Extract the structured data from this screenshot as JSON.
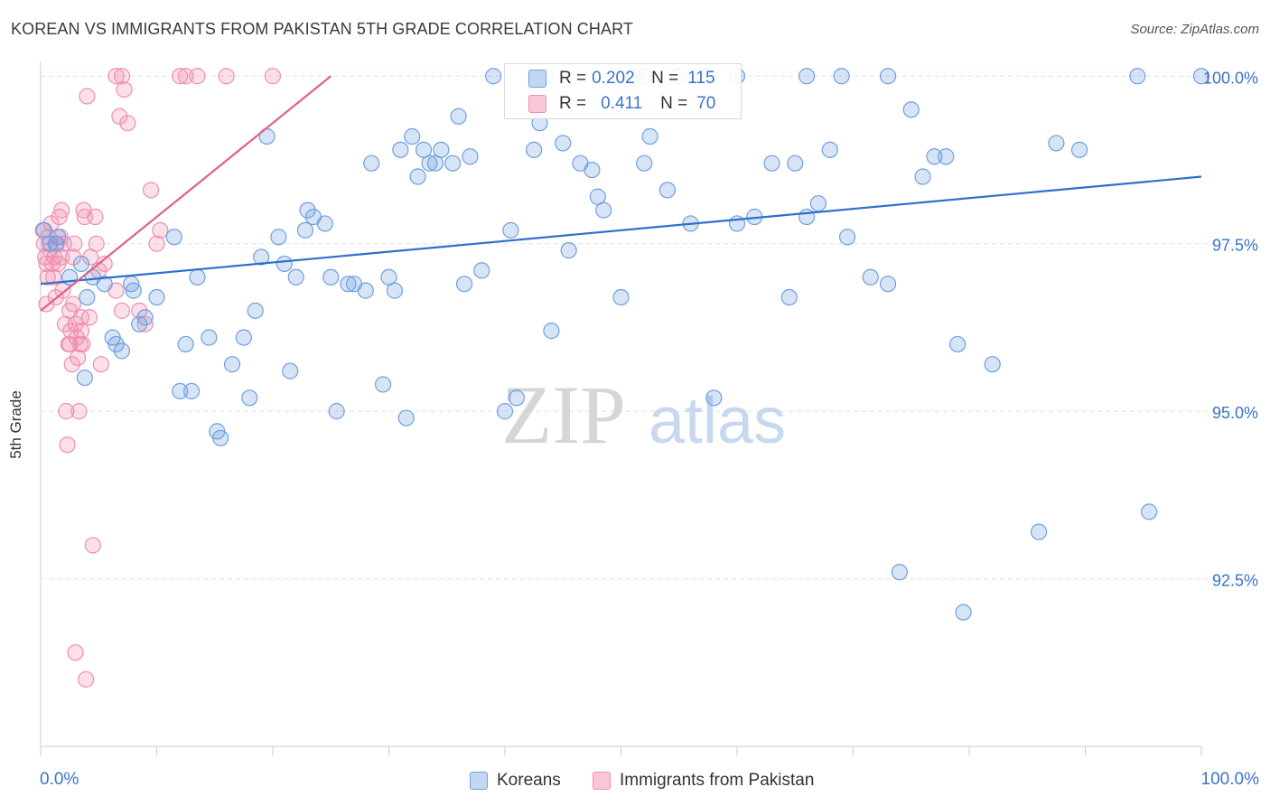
{
  "title": "KOREAN VS IMMIGRANTS FROM PAKISTAN 5TH GRADE CORRELATION CHART",
  "source": "Source: ZipAtlas.com",
  "watermark": {
    "zip": "ZIP",
    "atlas": "atlas"
  },
  "legend": {
    "r_label": "R =",
    "n_label": "N =",
    "koreans": {
      "r": "0.202",
      "n": "115"
    },
    "pakistan": {
      "r": "0.411",
      "n": "70"
    }
  },
  "colors": {
    "koreans": "#6f9fe0",
    "koreans_line": "#2f6fcc",
    "pakistan": "#ef8fb0",
    "pakistan_line": "#e0608a",
    "tick_text": "#3a74c8",
    "grid": "#e3e3e3"
  },
  "chart_data": {
    "type": "scatter",
    "title": "KOREAN VS IMMIGRANTS FROM PAKISTAN 5TH GRADE CORRELATION CHART",
    "xlabel": "",
    "ylabel": "5th Grade",
    "xlim": [
      0,
      100
    ],
    "ylim": [
      90.0,
      100.3
    ],
    "x_tick_labels": [
      "0.0%",
      "100.0%"
    ],
    "y_ticks": [
      92.5,
      95.0,
      97.5,
      100.0
    ],
    "y_tick_labels": [
      "92.5%",
      "95.0%",
      "97.5%",
      "100.0%"
    ],
    "grid": true,
    "legend_position": "bottom",
    "series": [
      {
        "name": "Koreans",
        "r": 0.202,
        "n": 115,
        "trend": {
          "x": [
            0,
            100
          ],
          "y": [
            96.9,
            98.5
          ]
        },
        "points": [
          [
            0.3,
            97.7
          ],
          [
            0.8,
            97.5
          ],
          [
            1.3,
            97.5
          ],
          [
            1.5,
            97.6
          ],
          [
            2.5,
            97.0
          ],
          [
            3.5,
            97.2
          ],
          [
            4.0,
            96.7
          ],
          [
            4.5,
            97.0
          ],
          [
            5.5,
            96.9
          ],
          [
            6.2,
            96.1
          ],
          [
            3.8,
            95.5
          ],
          [
            6.5,
            96.0
          ],
          [
            7.0,
            95.9
          ],
          [
            8.0,
            96.8
          ],
          [
            8.5,
            96.3
          ],
          [
            9.0,
            96.4
          ],
          [
            7.8,
            96.9
          ],
          [
            10.0,
            96.7
          ],
          [
            11.5,
            97.6
          ],
          [
            12.0,
            95.3
          ],
          [
            12.5,
            96.0
          ],
          [
            13.0,
            95.3
          ],
          [
            13.5,
            97.0
          ],
          [
            14.5,
            96.1
          ],
          [
            15.2,
            94.7
          ],
          [
            15.5,
            94.6
          ],
          [
            16.5,
            95.7
          ],
          [
            17.5,
            96.1
          ],
          [
            18.0,
            95.2
          ],
          [
            18.5,
            96.5
          ],
          [
            19.0,
            97.3
          ],
          [
            19.5,
            99.1
          ],
          [
            20.5,
            97.6
          ],
          [
            21.0,
            97.2
          ],
          [
            21.5,
            95.6
          ],
          [
            22.0,
            97.0
          ],
          [
            22.8,
            97.7
          ],
          [
            23.0,
            98.0
          ],
          [
            23.5,
            97.9
          ],
          [
            24.5,
            97.8
          ],
          [
            25.0,
            97.0
          ],
          [
            25.5,
            95.0
          ],
          [
            26.5,
            96.9
          ],
          [
            27.0,
            96.9
          ],
          [
            28.0,
            96.8
          ],
          [
            28.5,
            98.7
          ],
          [
            29.5,
            95.4
          ],
          [
            30.0,
            97.0
          ],
          [
            30.5,
            96.8
          ],
          [
            31.0,
            98.9
          ],
          [
            31.5,
            94.9
          ],
          [
            32.0,
            99.1
          ],
          [
            32.5,
            98.5
          ],
          [
            33.0,
            98.9
          ],
          [
            33.5,
            98.7
          ],
          [
            34.0,
            98.7
          ],
          [
            34.5,
            98.9
          ],
          [
            35.5,
            98.7
          ],
          [
            36.0,
            99.4
          ],
          [
            36.5,
            96.9
          ],
          [
            37.0,
            98.8
          ],
          [
            38.0,
            97.1
          ],
          [
            39.0,
            100.0
          ],
          [
            40.0,
            95.0
          ],
          [
            40.5,
            97.7
          ],
          [
            41.0,
            95.2
          ],
          [
            42.5,
            98.9
          ],
          [
            43.0,
            99.3
          ],
          [
            43.5,
            100.0
          ],
          [
            44.0,
            96.2
          ],
          [
            45.0,
            99.0
          ],
          [
            45.5,
            97.4
          ],
          [
            46.5,
            98.7
          ],
          [
            47.5,
            98.6
          ],
          [
            48.0,
            98.2
          ],
          [
            48.5,
            98.0
          ],
          [
            50.0,
            96.7
          ],
          [
            51.0,
            100.0
          ],
          [
            52.0,
            98.7
          ],
          [
            52.5,
            99.1
          ],
          [
            54.0,
            98.3
          ],
          [
            55.0,
            100.0
          ],
          [
            56.0,
            97.8
          ],
          [
            57.5,
            100.0
          ],
          [
            58.0,
            95.2
          ],
          [
            60.0,
            97.8
          ],
          [
            61.5,
            97.9
          ],
          [
            63.0,
            98.7
          ],
          [
            64.5,
            96.7
          ],
          [
            65.0,
            98.7
          ],
          [
            66.0,
            97.9
          ],
          [
            67.0,
            98.1
          ],
          [
            68.0,
            98.9
          ],
          [
            69.0,
            100.0
          ],
          [
            69.5,
            97.6
          ],
          [
            71.5,
            97.0
          ],
          [
            73.0,
            96.9
          ],
          [
            74.0,
            92.6
          ],
          [
            75.0,
            99.5
          ],
          [
            76.0,
            98.5
          ],
          [
            77.0,
            98.8
          ],
          [
            78.0,
            98.8
          ],
          [
            79.0,
            96.0
          ],
          [
            79.5,
            92.0
          ],
          [
            82.0,
            95.7
          ],
          [
            86.0,
            93.2
          ],
          [
            87.5,
            99.0
          ],
          [
            89.5,
            98.9
          ],
          [
            94.5,
            100.0
          ],
          [
            95.5,
            93.5
          ],
          [
            100.0,
            100.0
          ],
          [
            73.0,
            100.0
          ],
          [
            66.0,
            100.0
          ],
          [
            60.0,
            100.0
          ],
          [
            52.0,
            100.0
          ]
        ]
      },
      {
        "name": "Immigrants from Pakistan",
        "r": 0.411,
        "n": 70,
        "trend": {
          "x": [
            0,
            25
          ],
          "y": [
            96.5,
            100.0
          ]
        },
        "points": [
          [
            0.2,
            97.7
          ],
          [
            0.3,
            97.5
          ],
          [
            0.4,
            97.3
          ],
          [
            0.5,
            97.2
          ],
          [
            0.6,
            97.0
          ],
          [
            0.5,
            96.6
          ],
          [
            0.7,
            97.6
          ],
          [
            0.8,
            97.4
          ],
          [
            0.9,
            97.8
          ],
          [
            1.0,
            97.2
          ],
          [
            1.1,
            97.0
          ],
          [
            1.2,
            97.3
          ],
          [
            1.4,
            97.5
          ],
          [
            1.5,
            97.2
          ],
          [
            1.6,
            97.9
          ],
          [
            1.7,
            97.6
          ],
          [
            1.8,
            97.3
          ],
          [
            1.9,
            96.8
          ],
          [
            2.0,
            97.5
          ],
          [
            2.1,
            96.3
          ],
          [
            2.2,
            95.0
          ],
          [
            2.3,
            94.5
          ],
          [
            2.4,
            96.0
          ],
          [
            2.5,
            96.5
          ],
          [
            2.6,
            96.2
          ],
          [
            2.7,
            95.7
          ],
          [
            2.8,
            96.6
          ],
          [
            2.9,
            97.5
          ],
          [
            3.0,
            96.3
          ],
          [
            3.1,
            96.1
          ],
          [
            3.2,
            95.8
          ],
          [
            3.3,
            95.0
          ],
          [
            3.4,
            96.0
          ],
          [
            3.5,
            96.2
          ],
          [
            3.6,
            96.0
          ],
          [
            3.7,
            98.0
          ],
          [
            3.8,
            97.9
          ],
          [
            3.9,
            91.0
          ],
          [
            4.0,
            99.7
          ],
          [
            4.2,
            96.4
          ],
          [
            4.5,
            93.0
          ],
          [
            4.7,
            97.9
          ],
          [
            4.8,
            97.5
          ],
          [
            5.0,
            97.1
          ],
          [
            5.2,
            95.7
          ],
          [
            5.5,
            97.2
          ],
          [
            6.5,
            100.0
          ],
          [
            6.8,
            99.4
          ],
          [
            7.0,
            100.0
          ],
          [
            7.2,
            99.8
          ],
          [
            7.5,
            99.3
          ],
          [
            8.5,
            96.5
          ],
          [
            9.0,
            96.3
          ],
          [
            9.5,
            98.3
          ],
          [
            10.0,
            97.5
          ],
          [
            10.3,
            97.7
          ],
          [
            12.0,
            100.0
          ],
          [
            12.5,
            100.0
          ],
          [
            13.5,
            100.0
          ],
          [
            16.0,
            100.0
          ],
          [
            20.0,
            100.0
          ],
          [
            3.5,
            96.4
          ],
          [
            2.5,
            96.0
          ],
          [
            3.0,
            91.4
          ],
          [
            1.8,
            98.0
          ],
          [
            1.3,
            96.7
          ],
          [
            6.5,
            96.8
          ],
          [
            7.0,
            96.5
          ],
          [
            4.3,
            97.3
          ],
          [
            2.8,
            97.3
          ]
        ]
      }
    ]
  },
  "bottom_legend": [
    "Koreans",
    "Immigrants from Pakistan"
  ]
}
